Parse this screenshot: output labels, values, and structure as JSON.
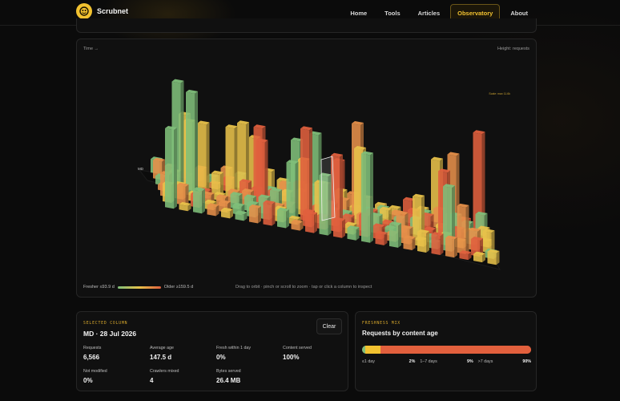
{
  "nav": {
    "brand": "Scrubnet",
    "links": [
      "Home",
      "Tools",
      "Articles",
      "Observatory",
      "About"
    ],
    "active": "Observatory"
  },
  "chart": {
    "time_label": "Time →",
    "height_label": "Height: requests",
    "scale_note": "Scale: max 11.6k",
    "row_label": "MD",
    "legend": {
      "fresher": "Fresher ≤93.9 d",
      "older": "Older ≥159.5 d"
    },
    "hint": "Drag to orbit · pinch or scroll to zoom · tap or click a column to inspect",
    "colors": {
      "fresh": "#7fbf7a",
      "mid": "#e8c24a",
      "older": "#e6904a",
      "old": "#e0603e"
    }
  },
  "selected": {
    "eyebrow": "SELECTED COLUMN",
    "title": "MD · 28 Jul 2026",
    "clear": "Clear",
    "stats": [
      {
        "label": "Requests",
        "value": "6,566"
      },
      {
        "label": "Average age",
        "value": "147.5 d"
      },
      {
        "label": "Fresh within 1 day",
        "value": "0%"
      },
      {
        "label": "Content served",
        "value": "100%"
      },
      {
        "label": "Not modified",
        "value": "0%"
      },
      {
        "label": "Crawlers mixed",
        "value": "4"
      },
      {
        "label": "Bytes served",
        "value": "26.4 MB"
      }
    ]
  },
  "mix": {
    "eyebrow": "FRESHNESS MIX",
    "title": "Requests by content age",
    "items": [
      {
        "label": "≤1 day",
        "pct": "2%",
        "value": 2,
        "color": "#7fbf7a"
      },
      {
        "label": "1–7 days",
        "pct": "9%",
        "value": 9,
        "color": "#f2c230"
      },
      {
        "label": ">7 days",
        "pct": "90%",
        "value": 90,
        "color": "#e2603d"
      }
    ]
  }
}
